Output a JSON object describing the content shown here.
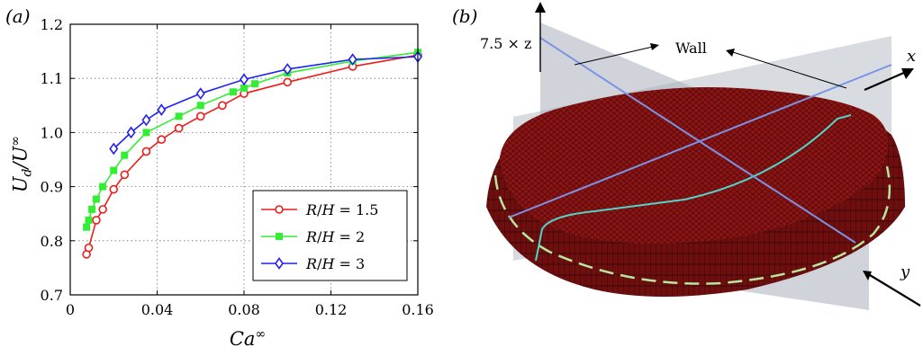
{
  "panel_a": {
    "label": "(a)"
  },
  "panel_b": {
    "label": "(b)",
    "scale_label": "7.5 × z",
    "wall_label": "Wall",
    "x_axis_label": "x",
    "y_axis_label": "y",
    "colors": {
      "drop": "#8e1414",
      "mesh": "#2a0505",
      "plane": "#a9b1bb",
      "plane_line": "#7b93e6",
      "contact_line": "#53d3c8",
      "dashed_line": "#b8e6a0"
    }
  },
  "chart_data": {
    "type": "line",
    "xlabel": "Ca∞",
    "ylabel": "U_d/U∞",
    "xlim": [
      0,
      0.16
    ],
    "ylim": [
      0.7,
      1.2
    ],
    "xticks": [
      0,
      0.04,
      0.08,
      0.12,
      0.16
    ],
    "xtick_labels": [
      "0",
      "0.04",
      "0.08",
      "0.12",
      "0.16"
    ],
    "yticks": [
      0.7,
      0.8,
      0.9,
      1.0,
      1.1,
      1.2
    ],
    "ytick_labels": [
      "0.7",
      "0.8",
      "0.9",
      "1.0",
      "1.1",
      "1.2"
    ],
    "grid": true,
    "legend_position": "bottom-right",
    "series": [
      {
        "name": "R/H = 1.5",
        "color": "#ee1c1c",
        "marker": "circle",
        "points": [
          [
            0.0075,
            0.775
          ],
          [
            0.0085,
            0.787
          ],
          [
            0.012,
            0.838
          ],
          [
            0.015,
            0.858
          ],
          [
            0.02,
            0.895
          ],
          [
            0.025,
            0.922
          ],
          [
            0.035,
            0.965
          ],
          [
            0.042,
            0.987
          ],
          [
            0.05,
            1.008
          ],
          [
            0.06,
            1.03
          ],
          [
            0.07,
            1.05
          ],
          [
            0.08,
            1.072
          ],
          [
            0.1,
            1.093
          ],
          [
            0.13,
            1.122
          ],
          [
            0.16,
            1.143
          ]
        ]
      },
      {
        "name": "R/H = 2",
        "color": "#33ee33",
        "marker": "square",
        "points": [
          [
            0.0075,
            0.825
          ],
          [
            0.0085,
            0.838
          ],
          [
            0.01,
            0.858
          ],
          [
            0.012,
            0.877
          ],
          [
            0.015,
            0.9
          ],
          [
            0.02,
            0.93
          ],
          [
            0.025,
            0.958
          ],
          [
            0.035,
            1.0
          ],
          [
            0.05,
            1.03
          ],
          [
            0.06,
            1.05
          ],
          [
            0.075,
            1.075
          ],
          [
            0.08,
            1.082
          ],
          [
            0.085,
            1.09
          ],
          [
            0.1,
            1.11
          ],
          [
            0.13,
            1.132
          ],
          [
            0.16,
            1.148
          ]
        ]
      },
      {
        "name": "R/H = 3",
        "color": "#2222ee",
        "marker": "diamond",
        "points": [
          [
            0.02,
            0.97
          ],
          [
            0.028,
            1.0
          ],
          [
            0.035,
            1.023
          ],
          [
            0.042,
            1.042
          ],
          [
            0.06,
            1.072
          ],
          [
            0.08,
            1.098
          ],
          [
            0.1,
            1.117
          ],
          [
            0.13,
            1.135
          ],
          [
            0.16,
            1.14
          ]
        ]
      }
    ]
  }
}
